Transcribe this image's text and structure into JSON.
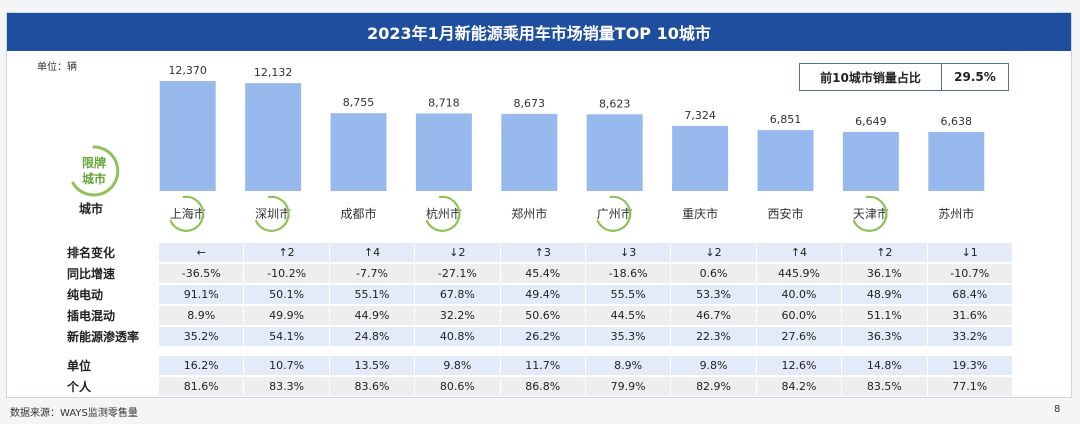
{
  "title": "2023年1月新能源乘用车市场销量TOP 10城市",
  "unit_label": "单位：辆",
  "share_box": {
    "label": "前10城市销量占比",
    "value": "29.5%"
  },
  "plate_label": [
    "限牌",
    "城市"
  ],
  "colors": {
    "header": "#1f4e9f",
    "bar": "#98b9ee",
    "circle": "#8dc25a"
  },
  "chart_data": {
    "type": "bar",
    "title": "2023年1月新能源乘用车市场销量TOP 10城市",
    "xlabel": "城市",
    "ylabel": "",
    "categories": [
      "上海市",
      "深圳市",
      "成都市",
      "杭州市",
      "郑州市",
      "广州市",
      "重庆市",
      "西安市",
      "天津市",
      "苏州市"
    ],
    "values": [
      12370,
      12132,
      8755,
      8718,
      8673,
      8623,
      7324,
      6851,
      6649,
      6638
    ],
    "value_labels": [
      "12,370",
      "12,132",
      "8,755",
      "8,718",
      "8,673",
      "8,623",
      "7,324",
      "6,851",
      "6,649",
      "6,638"
    ],
    "limited_plate_cities": [
      "上海市",
      "深圳市",
      "杭州市",
      "广州市",
      "天津市"
    ],
    "grid": false
  },
  "table": {
    "header_label": "城市",
    "rows": [
      {
        "label": "排名变化",
        "values": [
          "←",
          "↑2",
          "↑4",
          "↓2",
          "↑3",
          "↓3",
          "↓2",
          "↑4",
          "↑2",
          "↓1"
        ]
      },
      {
        "label": "同比增速",
        "values": [
          "-36.5%",
          "-10.2%",
          "-7.7%",
          "-27.1%",
          "45.4%",
          "-18.6%",
          "0.6%",
          "445.9%",
          "36.1%",
          "-10.7%"
        ]
      },
      {
        "label": "纯电动",
        "values": [
          "91.1%",
          "50.1%",
          "55.1%",
          "67.8%",
          "49.4%",
          "55.5%",
          "53.3%",
          "40.0%",
          "48.9%",
          "68.4%"
        ]
      },
      {
        "label": "插电混动",
        "values": [
          "8.9%",
          "49.9%",
          "44.9%",
          "32.2%",
          "50.6%",
          "44.5%",
          "46.7%",
          "60.0%",
          "51.1%",
          "31.6%"
        ]
      },
      {
        "label": "新能源渗透率",
        "values": [
          "35.2%",
          "54.1%",
          "24.8%",
          "40.8%",
          "26.2%",
          "35.3%",
          "22.3%",
          "27.6%",
          "36.3%",
          "33.2%"
        ]
      }
    ],
    "rows2": [
      {
        "label": "单位",
        "values": [
          "16.2%",
          "10.7%",
          "13.5%",
          "9.8%",
          "11.7%",
          "8.9%",
          "9.8%",
          "12.6%",
          "14.8%",
          "19.3%"
        ]
      },
      {
        "label": "个人",
        "values": [
          "81.6%",
          "83.3%",
          "83.6%",
          "80.6%",
          "86.8%",
          "79.9%",
          "82.9%",
          "84.2%",
          "83.5%",
          "77.1%"
        ]
      }
    ]
  },
  "footer": {
    "source": "数据来源：WAYS监测零售量",
    "page": "8"
  }
}
